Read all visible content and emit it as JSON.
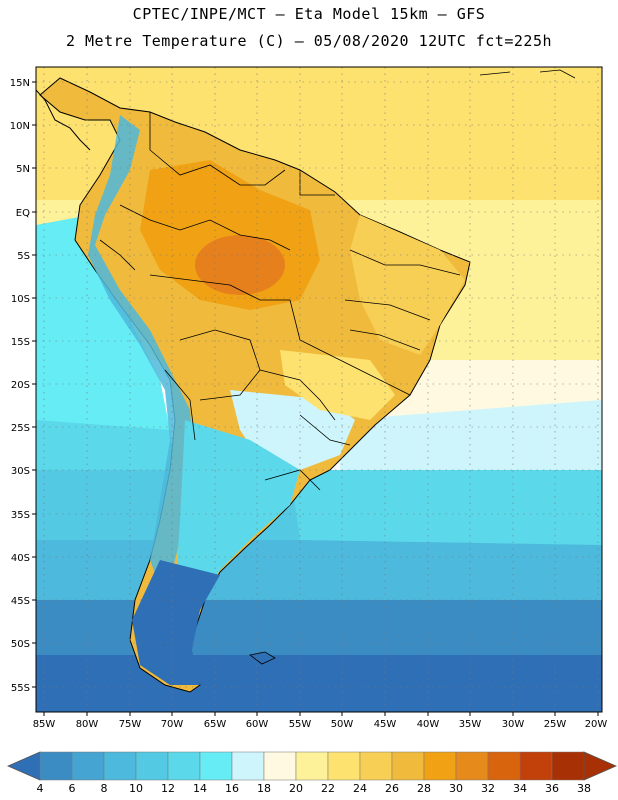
{
  "header": {
    "line1": "CPTEC/INPE/MCT –  Eta Model 15km – GFS",
    "line2": "2 Metre Temperature (C) – 05/08/2020 12UTC fct=225h"
  },
  "axes": {
    "lat_labels": [
      "15N",
      "10N",
      "5N",
      "EQ",
      "5S",
      "10S",
      "15S",
      "20S",
      "25S",
      "30S",
      "35S",
      "40S",
      "45S",
      "50S",
      "55S"
    ],
    "lon_labels": [
      "85W",
      "80W",
      "75W",
      "70W",
      "65W",
      "60W",
      "55W",
      "50W",
      "45W",
      "40W",
      "35W",
      "30W",
      "25W",
      "20W"
    ]
  },
  "colorbar": {
    "ticks": [
      "4",
      "6",
      "8",
      "10",
      "12",
      "14",
      "16",
      "18",
      "20",
      "22",
      "24",
      "26",
      "28",
      "30",
      "32",
      "34",
      "36",
      "38"
    ],
    "colors": [
      "#2f6fb5",
      "#3c8cc4",
      "#45a4d2",
      "#4db9dc",
      "#54c9e3",
      "#5bd8ea",
      "#66ecf4",
      "#cdf5fb",
      "#fef9e0",
      "#fdf29a",
      "#fde270",
      "#f8cf55",
      "#f0bb3c",
      "#f0a214",
      "#e58a1b",
      "#d9640e",
      "#c2410a",
      "#a83005"
    ]
  },
  "legend_text": {
    "units": "",
    "note": ""
  }
}
